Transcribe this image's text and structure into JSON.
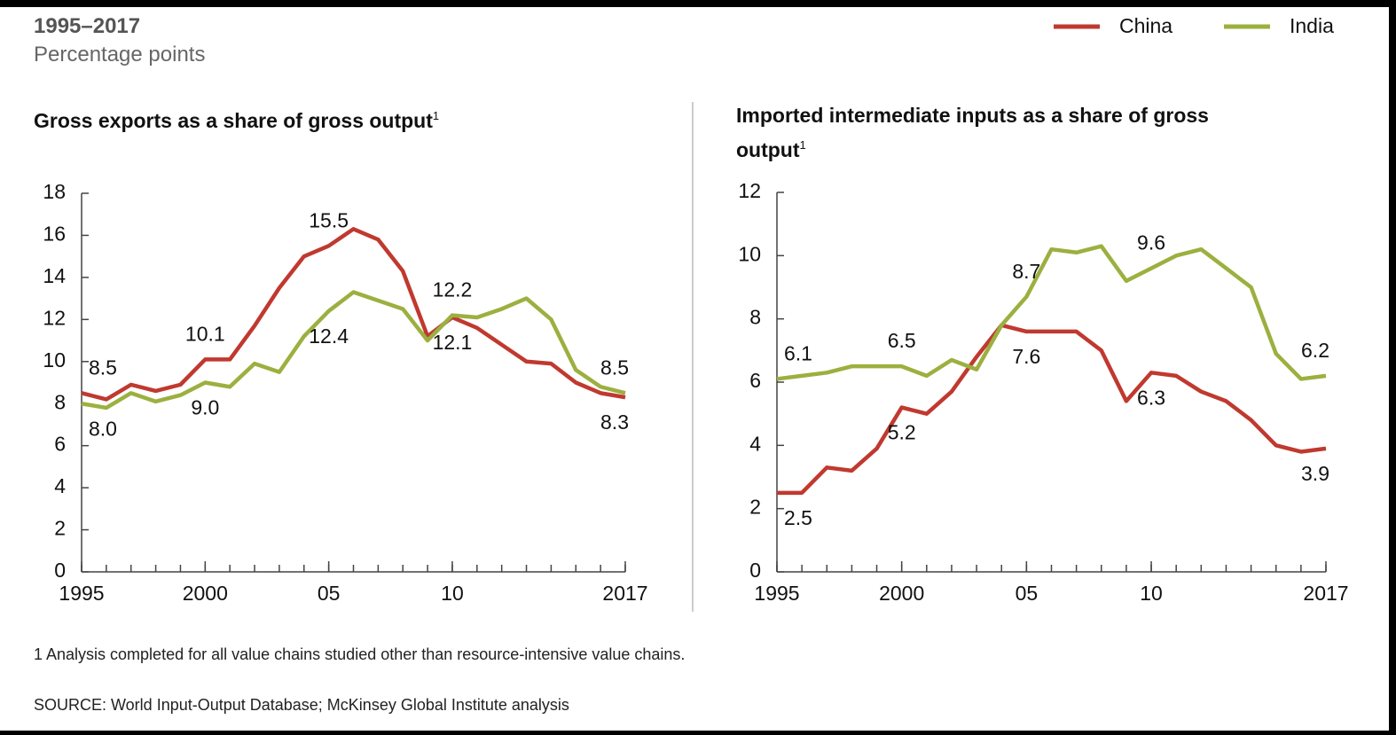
{
  "title": "1995–2017",
  "subtitle": "Percentage points",
  "legend_position": "upper right",
  "footnote": "1  Analysis completed for all value chains studied other than resource-intensive value chains.",
  "source": "SOURCE:  World Input-Output Database; McKinsey Global Institute analysis",
  "chart_data": [
    {
      "type": "line",
      "title": "Gross exports as a share of gross output",
      "title_note": "1",
      "x": [
        1995,
        1996,
        1997,
        1998,
        1999,
        2000,
        2001,
        2002,
        2003,
        2004,
        2005,
        2006,
        2007,
        2008,
        2009,
        2010,
        2011,
        2012,
        2013,
        2014,
        2015,
        2016,
        2017
      ],
      "xlim": [
        1995,
        2017
      ],
      "xticks": [
        1995,
        2000,
        {
          "value": 2005,
          "label": "05"
        },
        {
          "value": 2010,
          "label": "10"
        },
        2017
      ],
      "ylim": [
        0,
        18
      ],
      "yticks": [
        0,
        2,
        4,
        6,
        8,
        10,
        12,
        14,
        16,
        18
      ],
      "series": [
        {
          "name": "China",
          "color": "#c0392f",
          "values": [
            8.5,
            8.2,
            8.9,
            8.6,
            8.9,
            10.1,
            10.1,
            11.7,
            13.5,
            15.0,
            15.5,
            16.3,
            15.8,
            14.3,
            11.2,
            12.1,
            11.6,
            10.8,
            10.0,
            9.9,
            9.0,
            8.5,
            8.3
          ],
          "value_labels": [
            "8.5",
            null,
            null,
            null,
            null,
            "10.1",
            null,
            null,
            null,
            null,
            "15.5",
            null,
            null,
            null,
            null,
            "12.1",
            null,
            null,
            null,
            null,
            null,
            null,
            "8.3"
          ]
        },
        {
          "name": "India",
          "color": "#9bb03f",
          "values": [
            8.0,
            7.8,
            8.5,
            8.1,
            8.4,
            9.0,
            8.8,
            9.9,
            9.5,
            11.2,
            12.4,
            13.3,
            12.9,
            12.5,
            11.0,
            12.2,
            12.1,
            12.5,
            13.0,
            12.0,
            9.6,
            8.8,
            8.5
          ],
          "value_labels": [
            "8.0",
            null,
            null,
            null,
            null,
            "9.0",
            null,
            null,
            null,
            null,
            "12.4",
            null,
            null,
            null,
            null,
            "12.2",
            null,
            null,
            null,
            null,
            null,
            null,
            "8.5"
          ]
        }
      ]
    },
    {
      "type": "line",
      "title": "Imported intermediate inputs as a share of gross output",
      "title_note": "1",
      "x": [
        1995,
        1996,
        1997,
        1998,
        1999,
        2000,
        2001,
        2002,
        2003,
        2004,
        2005,
        2006,
        2007,
        2008,
        2009,
        2010,
        2011,
        2012,
        2013,
        2014,
        2015,
        2016,
        2017
      ],
      "xlim": [
        1995,
        2017
      ],
      "xticks": [
        1995,
        2000,
        {
          "value": 2005,
          "label": "05"
        },
        {
          "value": 2010,
          "label": "10"
        },
        2017
      ],
      "ylim": [
        0,
        12
      ],
      "yticks": [
        0,
        2,
        4,
        6,
        8,
        10,
        12
      ],
      "series": [
        {
          "name": "China",
          "color": "#c0392f",
          "values": [
            2.5,
            2.5,
            3.3,
            3.2,
            3.9,
            5.2,
            5.0,
            5.7,
            6.8,
            7.8,
            7.6,
            7.6,
            7.6,
            7.0,
            5.4,
            6.3,
            6.2,
            5.7,
            5.4,
            4.8,
            4.0,
            3.8,
            3.9
          ],
          "value_labels": [
            "2.5",
            null,
            null,
            null,
            null,
            "5.2",
            null,
            null,
            null,
            null,
            "7.6",
            null,
            null,
            null,
            null,
            "6.3",
            null,
            null,
            null,
            null,
            null,
            null,
            "3.9"
          ]
        },
        {
          "name": "India",
          "color": "#9bb03f",
          "values": [
            6.1,
            6.2,
            6.3,
            6.5,
            6.5,
            6.5,
            6.2,
            6.7,
            6.4,
            7.8,
            8.7,
            10.2,
            10.1,
            10.3,
            9.2,
            9.6,
            10.0,
            10.2,
            9.6,
            9.0,
            6.9,
            6.1,
            6.2
          ],
          "value_labels": [
            "6.1",
            null,
            null,
            null,
            null,
            "6.5",
            null,
            null,
            null,
            null,
            "8.7",
            null,
            null,
            null,
            null,
            "9.6",
            null,
            null,
            null,
            null,
            null,
            null,
            "6.2"
          ]
        }
      ]
    }
  ]
}
